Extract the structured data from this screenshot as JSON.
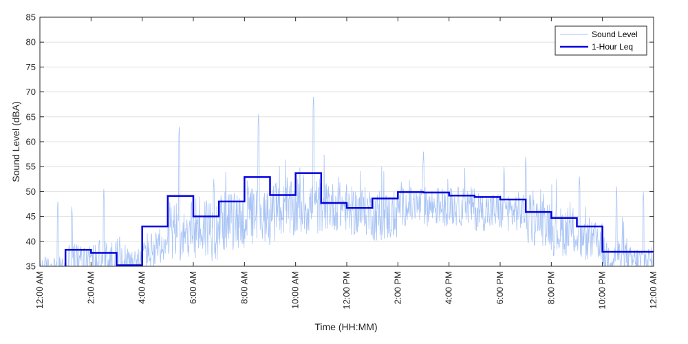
{
  "chart_data": {
    "type": "line",
    "title": "",
    "xlabel": "Time (HH:MM)",
    "ylabel": "Sound Level (dBA)",
    "xlim": [
      0,
      24
    ],
    "ylim": [
      35,
      85
    ],
    "grid": "horizontal",
    "legend_position": "top-right",
    "x_ticks": [
      {
        "value": 0,
        "label": "12:00 AM"
      },
      {
        "value": 2,
        "label": "2:00 AM"
      },
      {
        "value": 4,
        "label": "4:00 AM"
      },
      {
        "value": 6,
        "label": "6:00 AM"
      },
      {
        "value": 8,
        "label": "8:00 AM"
      },
      {
        "value": 10,
        "label": "10:00 AM"
      },
      {
        "value": 12,
        "label": "12:00 PM"
      },
      {
        "value": 14,
        "label": "2:00 PM"
      },
      {
        "value": 16,
        "label": "4:00 PM"
      },
      {
        "value": 18,
        "label": "6:00 PM"
      },
      {
        "value": 20,
        "label": "8:00 PM"
      },
      {
        "value": 22,
        "label": "10:00 PM"
      },
      {
        "value": 24,
        "label": "12:00 AM"
      }
    ],
    "y_ticks": [
      {
        "value": 35,
        "label": "35"
      },
      {
        "value": 40,
        "label": "40"
      },
      {
        "value": 45,
        "label": "45"
      },
      {
        "value": 50,
        "label": "50"
      },
      {
        "value": 55,
        "label": "55"
      },
      {
        "value": 60,
        "label": "60"
      },
      {
        "value": 65,
        "label": "65"
      },
      {
        "value": 70,
        "label": "70"
      },
      {
        "value": 75,
        "label": "75"
      },
      {
        "value": 80,
        "label": "80"
      },
      {
        "value": 85,
        "label": "85"
      }
    ],
    "series": [
      {
        "name": "Sound Level",
        "color": "#a9c4f5",
        "style": "thin-line",
        "hourly_baseline": [
          35,
          36,
          36,
          36,
          38,
          42,
          43,
          44,
          45,
          46,
          47,
          47,
          46,
          45,
          47,
          47,
          47,
          46,
          46,
          44,
          42,
          40,
          37,
          36
        ],
        "hourly_spread": [
          2,
          4,
          4,
          3,
          4,
          6,
          7,
          6,
          6,
          6,
          6,
          5,
          5,
          5,
          4,
          4,
          4,
          4,
          4,
          5,
          5,
          4,
          4,
          3
        ],
        "peaks": [
          {
            "x": 0.7,
            "y": 48
          },
          {
            "x": 1.25,
            "y": 47
          },
          {
            "x": 2.5,
            "y": 50.5
          },
          {
            "x": 5.45,
            "y": 63
          },
          {
            "x": 6.8,
            "y": 52.5
          },
          {
            "x": 8.55,
            "y": 65.5
          },
          {
            "x": 10.7,
            "y": 69
          },
          {
            "x": 15.0,
            "y": 58
          },
          {
            "x": 18.15,
            "y": 55
          },
          {
            "x": 19.0,
            "y": 57
          },
          {
            "x": 21.1,
            "y": 53
          },
          {
            "x": 22.55,
            "y": 51
          },
          {
            "x": 23.6,
            "y": 50
          }
        ]
      },
      {
        "name": "1-Hour Leq",
        "color": "#0000e0",
        "style": "step",
        "hours": [
          0,
          1,
          2,
          3,
          4,
          5,
          6,
          7,
          8,
          9,
          10,
          11,
          12,
          13,
          14,
          15,
          16,
          17,
          18,
          19,
          20,
          21,
          22,
          23
        ],
        "values": [
          33,
          38.3,
          37.7,
          35.2,
          43,
          49.1,
          45,
          48,
          52.9,
          49.3,
          53.7,
          47.7,
          46.7,
          48.6,
          49.9,
          49.8,
          49.2,
          48.9,
          48.4,
          45.9,
          44.7,
          43,
          37.9,
          37.9
        ]
      }
    ]
  }
}
